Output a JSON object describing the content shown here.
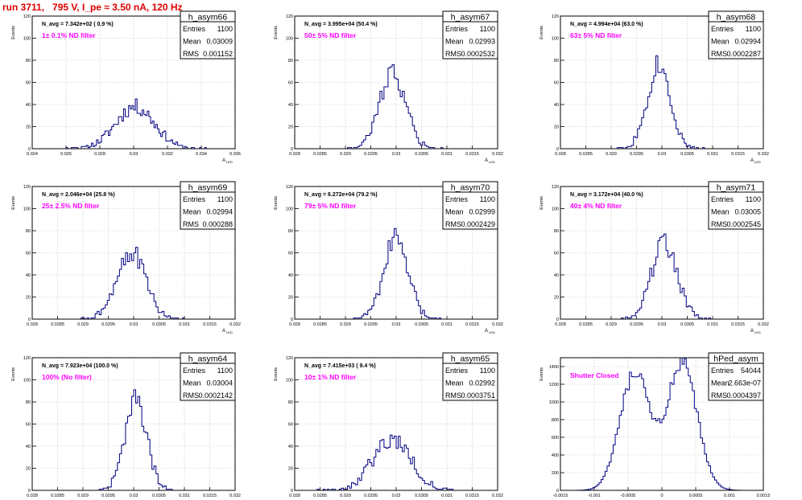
{
  "page": {
    "title": "run 3711,   795 V, I_pe ≈ 3.50 nA, 120 Hz"
  },
  "colors": {
    "title": "#e00000",
    "histogram": "#000080",
    "annotation": "#ff00ff",
    "grid": "#aaaaaa"
  },
  "axis_labels": {
    "y": "Events",
    "x": "A",
    "x_sub": "LED"
  },
  "stat_labels": {
    "entries": "Entries",
    "mean": "Mean",
    "rms": "RMS"
  },
  "chart_data": [
    {
      "type": "histogram",
      "name": "h_asym66",
      "navg_text": "N_avg = 7.342e+02 ( 0.9 %)",
      "filter_text": "1± 0.1% ND filter",
      "stats": {
        "entries": "1100",
        "mean": "0.03009",
        "rms": "0.001152"
      },
      "xlim": [
        0.024,
        0.036
      ],
      "ylim": [
        0,
        120
      ],
      "xticks": [
        "0.024",
        "0.026",
        "0.028",
        "0.03",
        "0.032",
        "0.034",
        "0.036"
      ],
      "yticks": [
        "0",
        "20",
        "40",
        "60",
        "80",
        "100",
        "120"
      ],
      "shape": {
        "mean": 0.03009,
        "rms": 0.001152,
        "entries": 1100,
        "bins": 120,
        "seed": 11
      }
    },
    {
      "type": "histogram",
      "name": "h_asym67",
      "navg_text": "N_avg = 3.995e+04 (50.4 %)",
      "filter_text": "50± 5% ND filter",
      "stats": {
        "entries": "1100",
        "mean": "0.02993",
        "rms": "0.0002532"
      },
      "xlim": [
        0.028,
        0.032
      ],
      "ylim": [
        0,
        120
      ],
      "xticks": [
        "0.028",
        "0.0285",
        "0.029",
        "0.0295",
        "0.03",
        "0.0305",
        "0.031",
        "0.0315",
        "0.032"
      ],
      "yticks": [
        "0",
        "20",
        "40",
        "60",
        "80",
        "100",
        "120"
      ],
      "shape": {
        "mean": 0.02993,
        "rms": 0.0002532,
        "entries": 1100,
        "bins": 100,
        "seed": 22
      }
    },
    {
      "type": "histogram",
      "name": "h_asym68",
      "navg_text": "N_avg = 4.994e+04 (63.0 %)",
      "filter_text": "63± 5% ND filter",
      "stats": {
        "entries": "1100",
        "mean": "0.02994",
        "rms": "0.0002287"
      },
      "xlim": [
        0.028,
        0.032
      ],
      "ylim": [
        0,
        120
      ],
      "xticks": [
        "0.028",
        "0.0285",
        "0.029",
        "0.0295",
        "0.03",
        "0.0305",
        "0.031",
        "0.0315",
        "0.032"
      ],
      "yticks": [
        "0",
        "20",
        "40",
        "60",
        "80",
        "100",
        "120"
      ],
      "shape": {
        "mean": 0.02994,
        "rms": 0.0002287,
        "entries": 1100,
        "bins": 100,
        "seed": 33
      }
    },
    {
      "type": "histogram",
      "name": "h_asym69",
      "navg_text": "N_avg = 2.046e+04 (25.8 %)",
      "filter_text": "25± 2.5% ND filter",
      "stats": {
        "entries": "1100",
        "mean": "0.02994",
        "rms": "0.000288"
      },
      "xlim": [
        0.028,
        0.032
      ],
      "ylim": [
        0,
        120
      ],
      "xticks": [
        "0.028",
        "0.0285",
        "0.029",
        "0.0295",
        "0.03",
        "0.0305",
        "0.031",
        "0.0315",
        "0.032"
      ],
      "yticks": [
        "0",
        "20",
        "40",
        "60",
        "80",
        "100",
        "120"
      ],
      "shape": {
        "mean": 0.02994,
        "rms": 0.000288,
        "entries": 1100,
        "bins": 100,
        "seed": 44
      }
    },
    {
      "type": "histogram",
      "name": "h_asym70",
      "navg_text": "N_avg = 6.272e+04 (79.2 %)",
      "filter_text": "79± 5% ND filter",
      "stats": {
        "entries": "1100",
        "mean": "0.02999",
        "rms": "0.0002429"
      },
      "xlim": [
        0.028,
        0.032
      ],
      "ylim": [
        0,
        120
      ],
      "xticks": [
        "0.028",
        "0.0285",
        "0.029",
        "0.0295",
        "0.03",
        "0.0305",
        "0.031",
        "0.0315",
        "0.032"
      ],
      "yticks": [
        "0",
        "20",
        "40",
        "60",
        "80",
        "100",
        "120"
      ],
      "shape": {
        "mean": 0.02999,
        "rms": 0.0002429,
        "entries": 1100,
        "bins": 100,
        "seed": 55
      }
    },
    {
      "type": "histogram",
      "name": "h_asym71",
      "navg_text": "N_avg = 3.172e+04 (40.0 %)",
      "filter_text": "40± 4% ND filter",
      "stats": {
        "entries": "1100",
        "mean": "0.03005",
        "rms": "0.0002545"
      },
      "xlim": [
        0.028,
        0.032
      ],
      "ylim": [
        0,
        120
      ],
      "xticks": [
        "0.028",
        "0.0285",
        "0.029",
        "0.0295",
        "0.03",
        "0.0305",
        "0.031",
        "0.0315",
        "0.032"
      ],
      "yticks": [
        "0",
        "20",
        "40",
        "60",
        "80",
        "100",
        "120"
      ],
      "shape": {
        "mean": 0.03005,
        "rms": 0.0002545,
        "entries": 1100,
        "bins": 100,
        "seed": 66
      }
    },
    {
      "type": "histogram",
      "name": "h_asym64",
      "navg_text": "N_avg = 7.923e+04 (100.0 %)",
      "filter_text": "100% (No filter)",
      "stats": {
        "entries": "1100",
        "mean": "0.03004",
        "rms": "0.0002142"
      },
      "xlim": [
        0.028,
        0.032
      ],
      "ylim": [
        0,
        120
      ],
      "xticks": [
        "0.028",
        "0.0285",
        "0.029",
        "0.0295",
        "0.03",
        "0.0305",
        "0.031",
        "0.0315",
        "0.032"
      ],
      "yticks": [
        "0",
        "20",
        "40",
        "60",
        "80",
        "100",
        "120"
      ],
      "shape": {
        "mean": 0.03004,
        "rms": 0.0002142,
        "entries": 1100,
        "bins": 100,
        "seed": 77
      }
    },
    {
      "type": "histogram",
      "name": "h_asym65",
      "navg_text": "N_avg = 7.415e+03 ( 9.4 %)",
      "filter_text": "10± 1% ND filter",
      "stats": {
        "entries": "1100",
        "mean": "0.02992",
        "rms": "0.0003751"
      },
      "xlim": [
        0.028,
        0.032
      ],
      "ylim": [
        0,
        120
      ],
      "xticks": [
        "0.028",
        "0.0285",
        "0.029",
        "0.0295",
        "0.03",
        "0.0305",
        "0.031",
        "0.0315",
        "0.032"
      ],
      "yticks": [
        "0",
        "20",
        "40",
        "60",
        "80",
        "100",
        "120"
      ],
      "shape": {
        "mean": 0.02992,
        "rms": 0.0003751,
        "entries": 1100,
        "bins": 100,
        "seed": 88
      }
    },
    {
      "type": "histogram",
      "name": "hPed_asym",
      "navg_text": "",
      "filter_text": "Shutter Closed",
      "stats": {
        "entries": "54044",
        "mean": "2.663e-07",
        "rms": "0.0004397"
      },
      "xlim": [
        -0.0015,
        0.0015
      ],
      "ylim": [
        0,
        1500
      ],
      "xticks": [
        "-0.0015",
        "-0.001",
        "-0.0005",
        "0",
        "0.0005",
        "0.001",
        "0.0015"
      ],
      "yticks": [
        "0",
        "200",
        "400",
        "600",
        "800",
        "1000",
        "1200",
        "1400"
      ],
      "shape": {
        "bimodal": true,
        "peaks": [
          -0.0004,
          0.0003
        ],
        "width": 0.00022,
        "peak_height": 1420,
        "dip": 860,
        "bins": 100
      }
    }
  ]
}
